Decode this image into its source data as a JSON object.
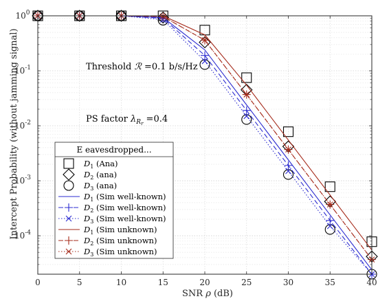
{
  "chart_data": {
    "type": "line",
    "x": [
      0,
      5,
      10,
      15,
      20,
      25,
      30,
      35,
      40
    ],
    "xlabel": "SNR ρ (dB)",
    "ylabel": "Intercept Probability (without jamming signal)",
    "xlim": [
      0,
      40
    ],
    "ylim": [
      2e-05,
      1
    ],
    "yscale": "log",
    "xticks": [
      "0",
      "5",
      "10",
      "15",
      "20",
      "25",
      "30",
      "35",
      "40"
    ],
    "yticks": [
      {
        "base": "10",
        "exp": "0",
        "value": 1
      },
      {
        "base": "10",
        "exp": "-1",
        "value": 0.1
      },
      {
        "base": "10",
        "exp": "-2",
        "value": 0.01
      },
      {
        "base": "10",
        "exp": "-3",
        "value": 0.001
      },
      {
        "base": "10",
        "exp": "-4",
        "value": 0.0001
      }
    ],
    "grid": true,
    "annotations": [
      {
        "prefix": "Threshold ",
        "sym": "ℛ",
        "suffix": " =0.1 b/s/Hz"
      },
      {
        "prefix": "PS factor ",
        "sym": "λ",
        "sub": "R",
        "subsub": "r",
        "suffix": " =0.4"
      }
    ],
    "legend": {
      "title": "E eavesdropped...",
      "placement": "bottom-left",
      "entries": [
        {
          "sym": "D",
          "sub": "1",
          "text": " (Ana)"
        },
        {
          "sym": "D",
          "sub": "2",
          "text": " (ana)"
        },
        {
          "sym": "D",
          "sub": "3",
          "text": " (ana)"
        },
        {
          "sym": "D",
          "sub": "1",
          "text": " (Sim well-known)"
        },
        {
          "sym": "D",
          "sub": "2",
          "text": " (Sim well-known)"
        },
        {
          "sym": "D",
          "sub": "3",
          "text": " (Sim well-known)"
        },
        {
          "sym": "D",
          "sub": "1",
          "text": " (Sim unknown)"
        },
        {
          "sym": "D",
          "sub": "2",
          "text": " (Sim unknown)"
        },
        {
          "sym": "D",
          "sub": "3",
          "text": " (Sim unknown)"
        }
      ]
    },
    "series": [
      {
        "marker": "square",
        "line": "none",
        "color": "#000000",
        "values": [
          1,
          1,
          1,
          1,
          0.55,
          0.075,
          0.0078,
          0.00078,
          7.8e-05
        ]
      },
      {
        "marker": "diamond",
        "line": "none",
        "color": "#000000",
        "values": [
          1,
          1,
          1,
          0.93,
          0.33,
          0.045,
          0.0042,
          0.00042,
          4.2e-05
        ]
      },
      {
        "marker": "circle",
        "line": "none",
        "color": "#000000",
        "values": [
          1,
          1,
          1,
          0.83,
          0.13,
          0.013,
          0.0013,
          0.00013,
          1.3e-05
        ]
      },
      {
        "marker": "none",
        "line": "solid",
        "color": "#2b2bd0",
        "values": [
          1,
          1,
          1,
          0.93,
          0.24,
          0.024,
          0.0024,
          0.00024,
          2.4e-05
        ]
      },
      {
        "marker": "plus",
        "line": "dashed",
        "color": "#2b2bd0",
        "values": [
          1,
          1,
          1,
          0.9,
          0.19,
          0.019,
          0.0019,
          0.00019,
          1.9e-05
        ]
      },
      {
        "marker": "x",
        "line": "dotted",
        "color": "#2b2bd0",
        "values": [
          1,
          1,
          1,
          0.85,
          0.15,
          0.015,
          0.0015,
          0.00015,
          1.5e-05
        ]
      },
      {
        "marker": "none",
        "line": "solid",
        "color": "#a52a1a",
        "values": [
          1,
          1,
          1,
          1,
          0.45,
          0.055,
          0.0055,
          0.00055,
          5.5e-05
        ]
      },
      {
        "marker": "plus",
        "line": "dashed",
        "color": "#a52a1a",
        "values": [
          1,
          1,
          1,
          0.97,
          0.36,
          0.037,
          0.0037,
          0.00037,
          3.7e-05
        ]
      },
      {
        "marker": "x",
        "line": "dotted",
        "color": "#a52a1a",
        "values": [
          1,
          1,
          1,
          0.97,
          0.36,
          0.037,
          0.0037,
          0.00037,
          3.7e-05
        ]
      }
    ]
  }
}
